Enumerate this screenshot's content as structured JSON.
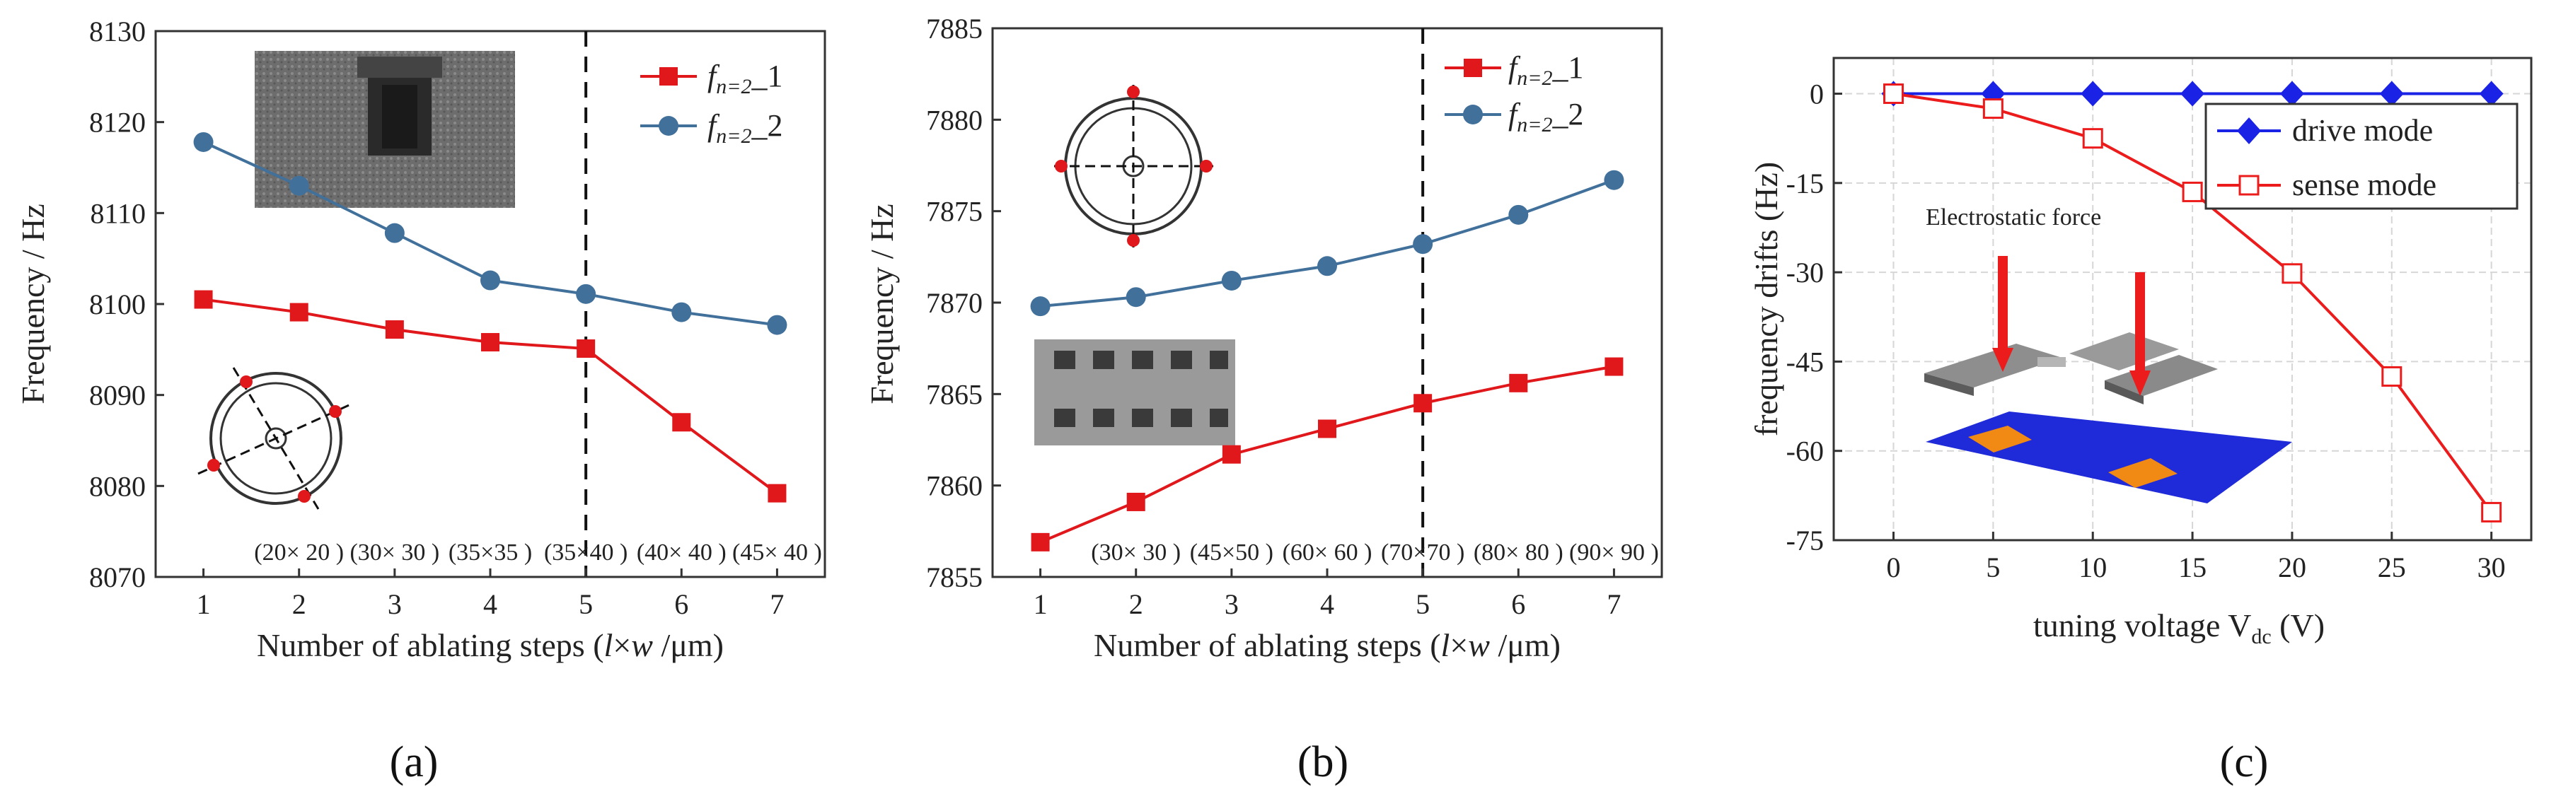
{
  "chart_data": [
    {
      "id": "a",
      "type": "line",
      "caption": "(a)",
      "xlabel_parts": [
        "Number of ablating steps (",
        "l",
        "×",
        "w",
        " /μm)"
      ],
      "ylabel": "Frequency / Hz",
      "xlim": [
        0.5,
        7.5
      ],
      "ylim": [
        8070,
        8130
      ],
      "x_ticks": [
        1,
        2,
        3,
        4,
        5,
        6,
        7
      ],
      "y_ticks": [
        8070,
        8080,
        8090,
        8100,
        8110,
        8120,
        8130
      ],
      "x": [
        1,
        2,
        3,
        4,
        5,
        6,
        7
      ],
      "series": [
        {
          "name_base": "f",
          "name_sub": "n=2",
          "name_suffix": "_1",
          "color": "#e0171b",
          "marker": "square",
          "values": [
            8100.5,
            8099.1,
            8097.2,
            8095.8,
            8095.1,
            8087.0,
            8079.2
          ]
        },
        {
          "name_base": "f",
          "name_sub": "n=2",
          "name_suffix": "_2",
          "color": "#41709b",
          "marker": "circle",
          "values": [
            8117.8,
            8113.0,
            8107.8,
            8102.6,
            8101.1,
            8099.1,
            8097.7
          ]
        }
      ],
      "vline_x": 5,
      "step_labels": [
        {
          "x": 2,
          "text": "(20× 20 )"
        },
        {
          "x": 3,
          "text": "(30× 30 )"
        },
        {
          "x": 4,
          "text": "(35×35 )"
        },
        {
          "x": 5,
          "text": "(35×40 )"
        },
        {
          "x": 6,
          "text": "(40× 40 )"
        },
        {
          "x": 7,
          "text": "(45× 40 )"
        }
      ]
    },
    {
      "id": "b",
      "type": "line",
      "caption": "(b)",
      "xlabel_parts": [
        "Number of ablating steps (",
        "l",
        "×",
        "w",
        " /μm)"
      ],
      "ylabel": "Frequency / Hz",
      "xlim": [
        0.5,
        7.5
      ],
      "ylim": [
        7855,
        7885
      ],
      "x_ticks": [
        1,
        2,
        3,
        4,
        5,
        6,
        7
      ],
      "y_ticks": [
        7855,
        7860,
        7865,
        7870,
        7875,
        7880,
        7885
      ],
      "x": [
        1,
        2,
        3,
        4,
        5,
        6,
        7
      ],
      "series": [
        {
          "name_base": "f",
          "name_sub": "n=2",
          "name_suffix": "_1",
          "color": "#e0171b",
          "marker": "square",
          "values": [
            7856.9,
            7859.1,
            7861.7,
            7863.1,
            7864.5,
            7865.6,
            7866.5
          ]
        },
        {
          "name_base": "f",
          "name_sub": "n=2",
          "name_suffix": "_2",
          "color": "#41709b",
          "marker": "circle",
          "values": [
            7869.8,
            7870.3,
            7871.2,
            7872.0,
            7873.2,
            7874.8,
            7876.7
          ]
        }
      ],
      "vline_x": 5,
      "step_labels": [
        {
          "x": 2,
          "text": "(30× 30 )"
        },
        {
          "x": 3,
          "text": "(45×50 )"
        },
        {
          "x": 4,
          "text": "(60× 60 )"
        },
        {
          "x": 5,
          "text": "(70×70 )"
        },
        {
          "x": 6,
          "text": "(80× 80 )"
        },
        {
          "x": 7,
          "text": "(90× 90 )"
        }
      ]
    },
    {
      "id": "c",
      "type": "line",
      "caption": "(c)",
      "xlabel_base": "tuning voltage V",
      "xlabel_sub": "dc",
      "xlabel_tail": " (V)",
      "ylabel": "frequency drifts (Hz)",
      "xlim": [
        -3,
        32
      ],
      "ylim": [
        -75,
        6
      ],
      "x_ticks": [
        0,
        5,
        10,
        15,
        20,
        25,
        30
      ],
      "y_ticks": [
        0,
        -15,
        -30,
        -45,
        -60,
        -75
      ],
      "x": [
        0,
        5,
        10,
        15,
        20,
        25,
        30
      ],
      "series": [
        {
          "name": "drive mode",
          "color": "#1a22e6",
          "marker": "diamond",
          "values": [
            0,
            0,
            0,
            0,
            0,
            0,
            0
          ]
        },
        {
          "name": "sense mode",
          "color": "#ec1c1c",
          "marker": "square-open",
          "values": [
            0,
            -2.5,
            -7.5,
            -16.5,
            -30.2,
            -47.5,
            -70.3
          ]
        }
      ],
      "annotation": "Electrostatic force"
    }
  ]
}
